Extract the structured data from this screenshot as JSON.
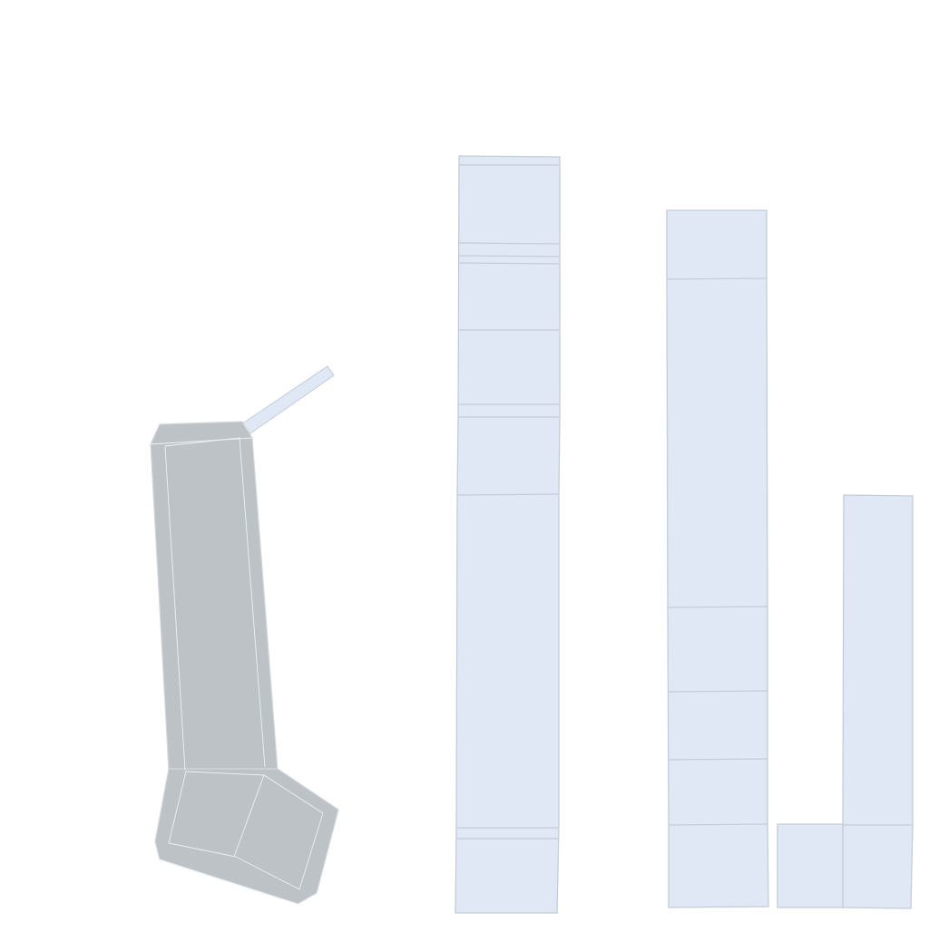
{
  "scene": {
    "background": "#ffffff",
    "colors": {
      "column_fill": "#dfe8f4",
      "column_outline": "#c4ccd6",
      "boot_fill": "#bdc2c6",
      "boot_edge": "#eef1f3"
    },
    "objects": [
      {
        "name": "gray-boot-shape",
        "color": "#bdc2c6"
      },
      {
        "name": "thin-rod",
        "color": "#dfe8f4"
      },
      {
        "name": "tall-block-column",
        "segments": 10
      },
      {
        "name": "medium-block-column",
        "segments": 6
      },
      {
        "name": "short-block-column",
        "segments": 2
      },
      {
        "name": "small-square-block",
        "segments": 1
      }
    ]
  }
}
